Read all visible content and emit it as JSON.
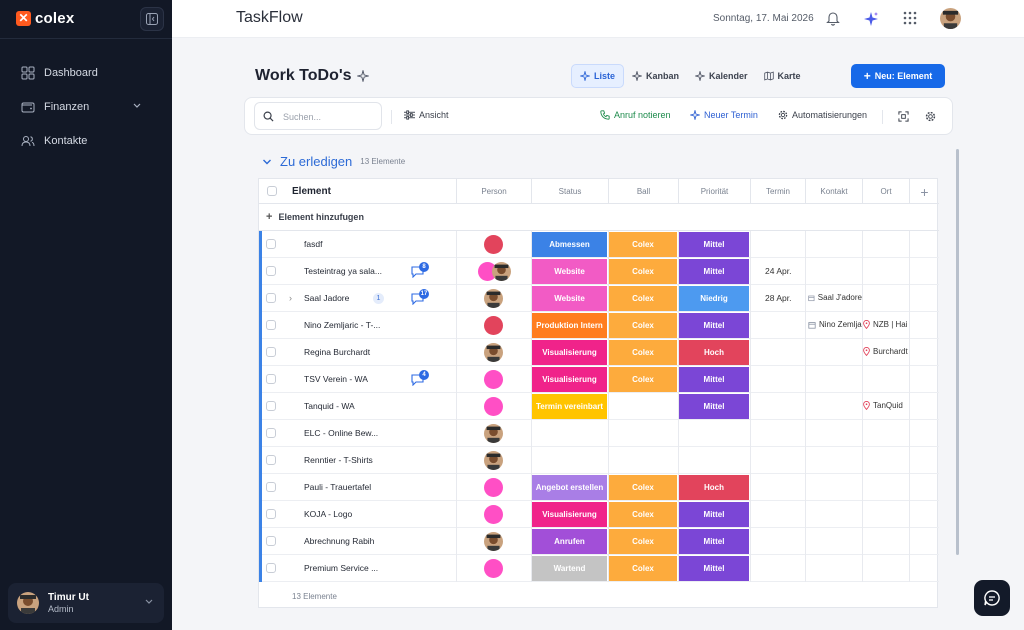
{
  "app": {
    "logo": "colex",
    "title": "TaskFlow"
  },
  "sidebar": {
    "items": [
      {
        "label": "Dashboard",
        "icon": "grid-icon"
      },
      {
        "label": "Finanzen",
        "icon": "wallet-icon",
        "has_children": true
      },
      {
        "label": "Kontakte",
        "icon": "users-icon"
      }
    ],
    "user": {
      "name": "Timur Ut",
      "role": "Admin"
    }
  },
  "header": {
    "date": "Sonntag, 17. Mai 2026"
  },
  "page": {
    "title": "Work ToDo's",
    "views": [
      {
        "label": "Liste",
        "active": true
      },
      {
        "label": "Kanban",
        "active": false
      },
      {
        "label": "Kalender",
        "active": false
      },
      {
        "label": "Karte",
        "active": false
      }
    ],
    "new_button": "Neu: Element"
  },
  "toolbar": {
    "search_placeholder": "Suchen...",
    "view_label": "Ansicht",
    "call_label": "Anruf notieren",
    "appointment_label": "Neuer Termin",
    "automation_label": "Automatisierungen"
  },
  "group": {
    "title": "Zu erledigen",
    "count": "13 Elemente",
    "footer_count": "13 Elemente"
  },
  "table": {
    "columns": {
      "element": "Element",
      "person": "Person",
      "status": "Status",
      "ball": "Ball",
      "priority": "Priorität",
      "termin": "Termin",
      "kontakt": "Kontakt",
      "ort": "Ort"
    },
    "add_label": "Element hinzufugen",
    "rows": [
      {
        "name": "fasdf",
        "person": "red",
        "status": "Abmessen",
        "status_color": "#3b82e6",
        "ball": "Colex",
        "priority": "Mittel",
        "priority_color": "#7b46d6"
      },
      {
        "name": "Testeintrag ya sala...",
        "comments": "8",
        "person": "pink+photo",
        "status": "Website",
        "status_color": "#f25bc5",
        "ball": "Colex",
        "priority": "Mittel",
        "priority_color": "#7b46d6",
        "termin": "24 Apr."
      },
      {
        "name": "Saal Jadore",
        "expand": true,
        "sub": "1",
        "comments": "17",
        "person": "photo",
        "status": "Website",
        "status_color": "#f25bc5",
        "ball": "Colex",
        "priority": "Niedrig",
        "priority_color": "#4d9af0",
        "termin": "28 Apr.",
        "kontakt": "Saal J'adore"
      },
      {
        "name": "Nino Zemljaric - T-...",
        "person": "red",
        "status": "Produktion Intern",
        "status_color": "#ff7d1f",
        "ball": "Colex",
        "priority": "Mittel",
        "priority_color": "#7b46d6",
        "kontakt": "Nino Zemlja",
        "ort": "NZB | Hai"
      },
      {
        "name": "Regina Burchardt",
        "person": "photo",
        "status": "Visualisierung",
        "status_color": "#f0238a",
        "ball": "Colex",
        "priority": "Hoch",
        "priority_color": "#e2445c",
        "ort": "Burchardt"
      },
      {
        "name": "TSV Verein - WA",
        "comments": "4",
        "person": "pink",
        "status": "Visualisierung",
        "status_color": "#f0238a",
        "ball": "Colex",
        "priority": "Mittel",
        "priority_color": "#7b46d6"
      },
      {
        "name": "Tanquid - WA",
        "person": "pink",
        "status": "Termin vereinbart",
        "status_color": "#ffc400",
        "priority": "Mittel",
        "priority_color": "#7b46d6",
        "ort": "TanQuid"
      },
      {
        "name": "ELC - Online Bew...",
        "person": "photo"
      },
      {
        "name": "Renntier - T-Shirts",
        "person": "photo"
      },
      {
        "name": "Pauli - Trauertafel",
        "person": "pink",
        "status": "Angebot erstellen",
        "status_color": "#a97ee6",
        "ball": "Colex",
        "priority": "Hoch",
        "priority_color": "#e2445c"
      },
      {
        "name": "KOJA - Logo",
        "person": "pink",
        "status": "Visualisierung",
        "status_color": "#f0238a",
        "ball": "Colex",
        "priority": "Mittel",
        "priority_color": "#7b46d6"
      },
      {
        "name": "Abrechnung Rabih",
        "person": "photo",
        "status": "Anrufen",
        "status_color": "#a24fd8",
        "ball": "Colex",
        "priority": "Mittel",
        "priority_color": "#7b46d6"
      },
      {
        "name": "Premium Service ...",
        "person": "pink",
        "status": "Wartend",
        "status_color": "#c4c4c4",
        "ball": "Colex",
        "priority": "Mittel",
        "priority_color": "#7b46d6"
      }
    ]
  },
  "colors": {
    "accent": "#1769e8",
    "ball": "#fdab3d",
    "sidebar": "#121826"
  }
}
